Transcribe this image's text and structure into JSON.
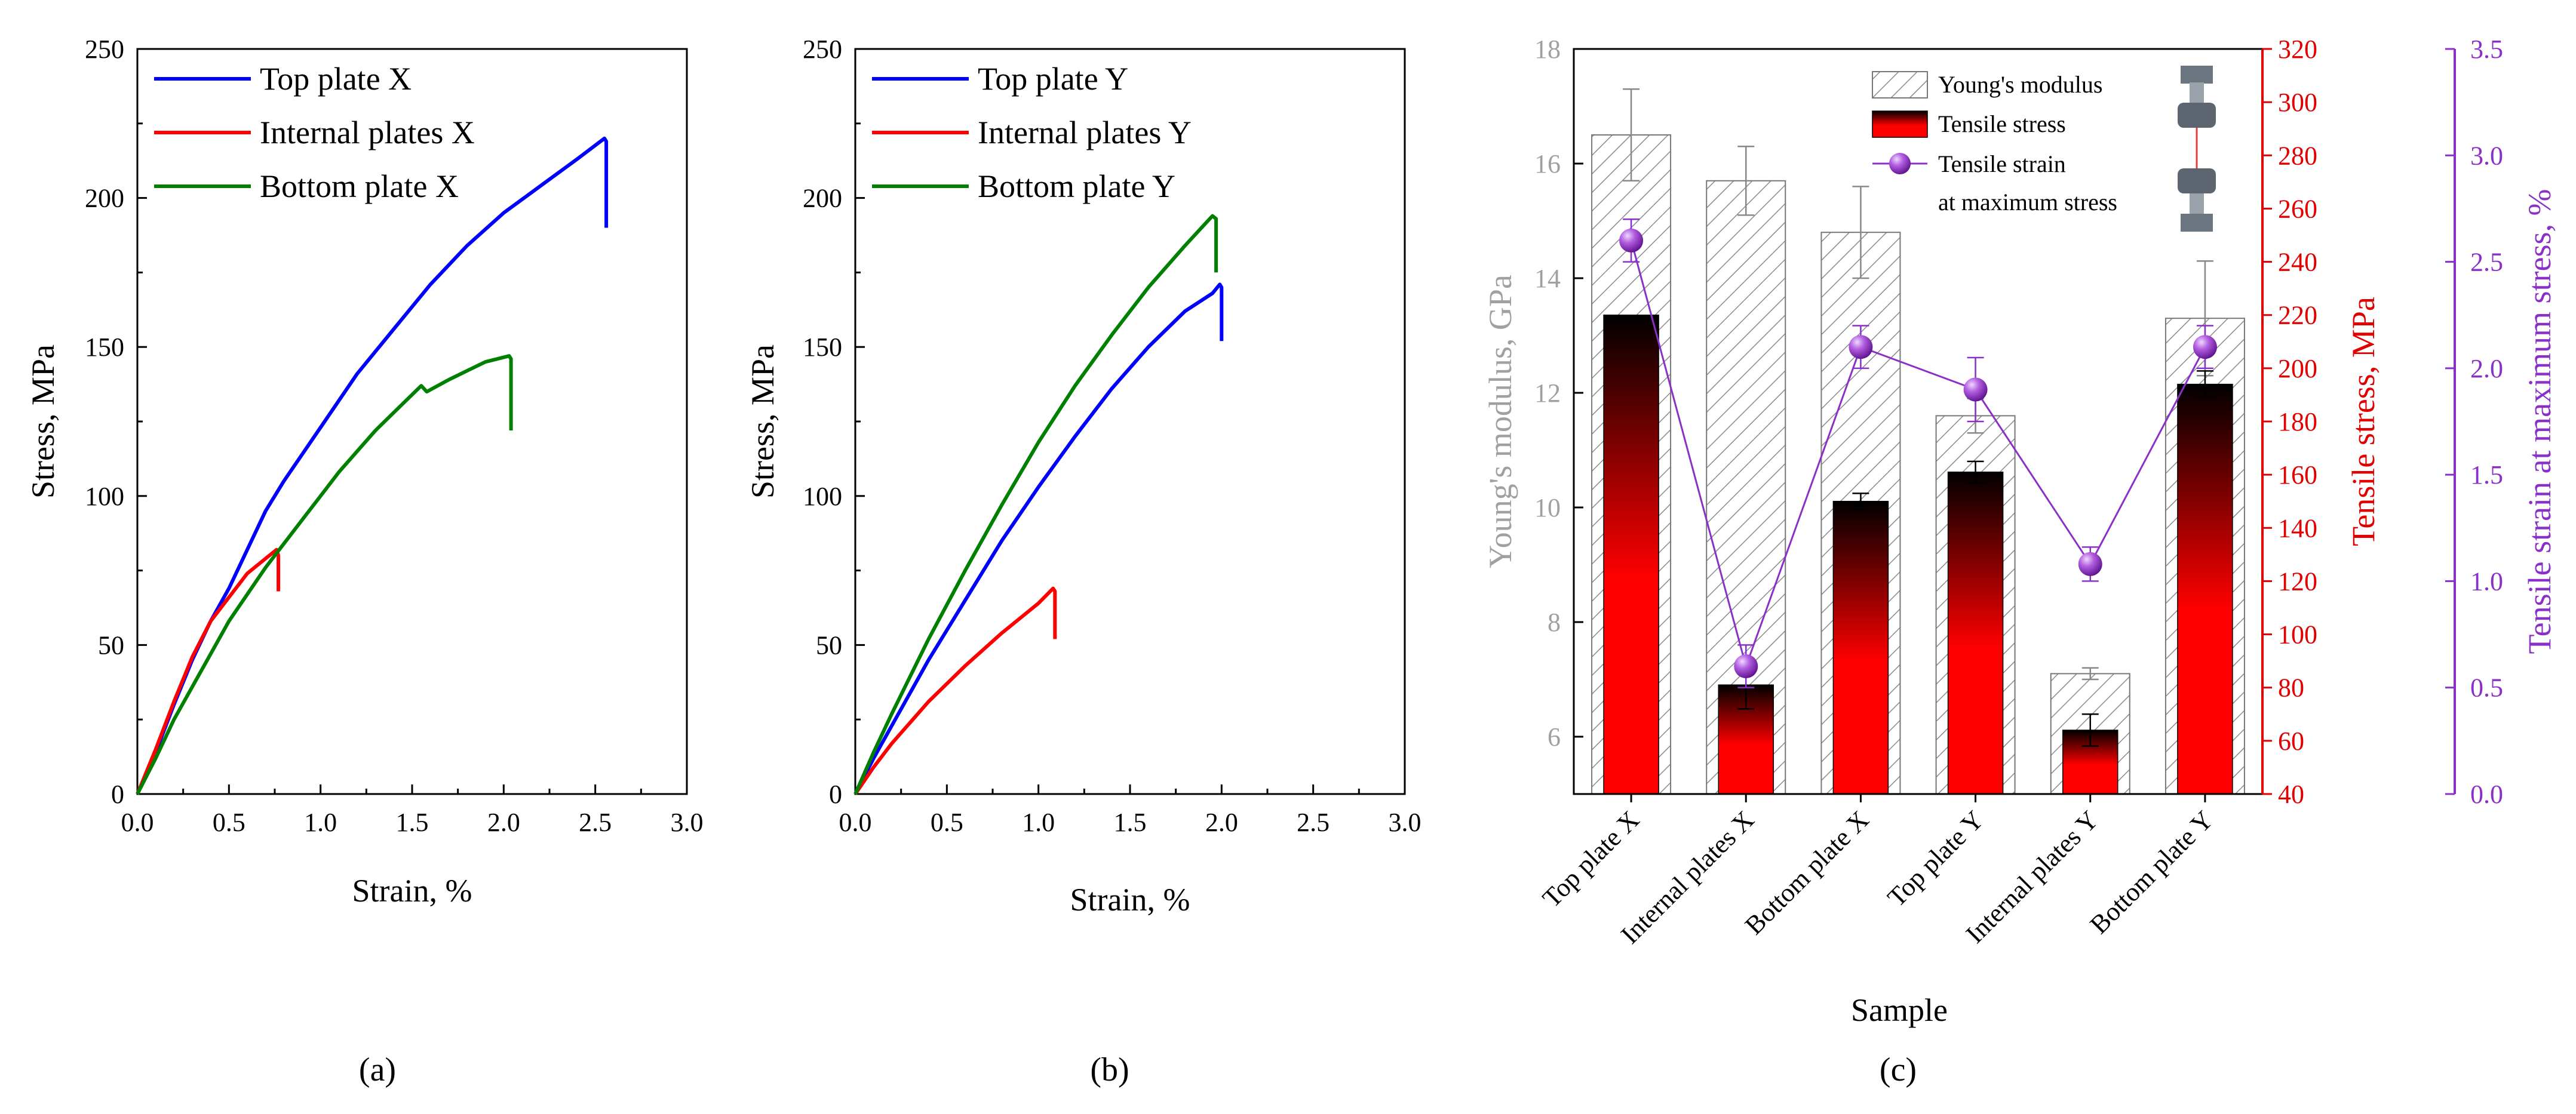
{
  "chart_data": [
    {
      "type": "line",
      "panel_label": "(a)",
      "xlabel": "Strain, %",
      "ylabel": "Stress, MPa",
      "xlim": [
        0,
        3.0
      ],
      "ylim": [
        0,
        250
      ],
      "x_ticks": [
        "0.0",
        "0.5",
        "1.0",
        "1.5",
        "2.0",
        "2.5",
        "3.0"
      ],
      "y_ticks": [
        "0",
        "50",
        "100",
        "150",
        "200",
        "250"
      ],
      "legend": "top-left",
      "series": [
        {
          "name": "Top plate X",
          "color": "#0000ff",
          "x": [
            0,
            0.1,
            0.2,
            0.3,
            0.4,
            0.5,
            0.6,
            0.7,
            0.8,
            0.9,
            1.0,
            1.2,
            1.4,
            1.6,
            1.8,
            2.0,
            2.2,
            2.4,
            2.55,
            2.56,
            2.56
          ],
          "y": [
            0,
            14,
            30,
            45,
            58,
            69,
            82,
            95,
            105,
            114,
            123,
            141,
            156,
            171,
            184,
            195,
            204,
            213,
            220,
            219,
            190
          ]
        },
        {
          "name": "Internal plates X",
          "color": "#ff0000",
          "x": [
            0,
            0.1,
            0.2,
            0.3,
            0.4,
            0.5,
            0.6,
            0.7,
            0.76,
            0.77,
            0.77
          ],
          "y": [
            0,
            15,
            31,
            46,
            58,
            66,
            74,
            79,
            82,
            80,
            68
          ]
        },
        {
          "name": "Bottom plate X",
          "color": "#008000",
          "x": [
            0,
            0.1,
            0.2,
            0.3,
            0.4,
            0.5,
            0.6,
            0.7,
            0.8,
            0.9,
            1.0,
            1.1,
            1.2,
            1.3,
            1.4,
            1.55,
            1.58,
            1.7,
            1.8,
            1.9,
            2.03,
            2.04,
            2.04
          ],
          "y": [
            0,
            12,
            25,
            36,
            47,
            58,
            67,
            76,
            84,
            92,
            100,
            108,
            115,
            122,
            128,
            137,
            135,
            139,
            142,
            145,
            147,
            146,
            122
          ]
        }
      ]
    },
    {
      "type": "line",
      "panel_label": "(b)",
      "xlabel": "Strain, %",
      "ylabel": "Stress, MPa",
      "xlim": [
        0,
        3.0
      ],
      "ylim": [
        0,
        250
      ],
      "x_ticks": [
        "0.0",
        "0.5",
        "1.0",
        "1.5",
        "2.0",
        "2.5",
        "3.0"
      ],
      "y_ticks": [
        "0",
        "50",
        "100",
        "150",
        "200",
        "250"
      ],
      "legend": "top-left",
      "series": [
        {
          "name": "Top plate Y",
          "color": "#0000ff",
          "x": [
            0,
            0.1,
            0.2,
            0.4,
            0.6,
            0.8,
            1.0,
            1.2,
            1.4,
            1.6,
            1.8,
            1.95,
            1.99,
            2.0,
            2.0
          ],
          "y": [
            0,
            12,
            23,
            45,
            65,
            85,
            103,
            120,
            136,
            150,
            162,
            168,
            171,
            170,
            152
          ]
        },
        {
          "name": "Internal plates Y",
          "color": "#ff0000",
          "x": [
            0,
            0.1,
            0.2,
            0.4,
            0.6,
            0.8,
            1.0,
            1.08,
            1.09,
            1.09
          ],
          "y": [
            0,
            9,
            17,
            31,
            43,
            54,
            64,
            69,
            68,
            52
          ]
        },
        {
          "name": "Bottom plate Y",
          "color": "#008000",
          "x": [
            0,
            0.1,
            0.2,
            0.4,
            0.6,
            0.8,
            1.0,
            1.2,
            1.4,
            1.6,
            1.8,
            1.95,
            1.97,
            1.97
          ],
          "y": [
            0,
            14,
            27,
            52,
            75,
            97,
            118,
            137,
            154,
            170,
            184,
            194,
            193,
            175
          ]
        }
      ]
    },
    {
      "type": "bar",
      "panel_label": "(c)",
      "xlabel": "Sample",
      "categories": [
        "Top plate X",
        "Internal plates X",
        "Bottom plate X",
        "Top plate Y",
        "Internal plates Y",
        "Bottom plate Y"
      ],
      "left_axis": {
        "label": "Young's modulus, GPa",
        "range": [
          5,
          18
        ],
        "ticks": [
          "6",
          "8",
          "10",
          "12",
          "14",
          "16",
          "18"
        ],
        "color": "#a0a0a0"
      },
      "right_axis_1": {
        "label": "Tensile stress, MPa",
        "range": [
          40,
          320
        ],
        "ticks": [
          "40",
          "60",
          "80",
          "100",
          "120",
          "140",
          "160",
          "180",
          "200",
          "220",
          "240",
          "260",
          "280",
          "300",
          "320"
        ],
        "color": "#e00000"
      },
      "right_axis_2": {
        "label": "Tensile strain at maximum stress, %",
        "range": [
          0.0,
          3.5
        ],
        "ticks": [
          "0.0",
          "0.5",
          "1.0",
          "1.5",
          "2.0",
          "2.5",
          "3.0",
          "3.5"
        ],
        "color": "#8b2fc9"
      },
      "series": [
        {
          "name": "Young's modulus",
          "axis": "left",
          "values": [
            16.5,
            15.7,
            14.8,
            11.6,
            7.1,
            13.3
          ],
          "errors": [
            0.8,
            0.6,
            0.8,
            0.3,
            0.1,
            1.0
          ]
        },
        {
          "name": "Tensile stress",
          "axis": "right_1",
          "values": [
            220,
            81,
            150,
            161,
            64,
            194
          ],
          "errors": [
            0,
            9,
            3,
            4,
            6,
            5
          ]
        },
        {
          "name": "Tensile strain at maximum stress",
          "axis": "right_2",
          "values": [
            2.6,
            0.6,
            2.1,
            1.9,
            1.08,
            2.1
          ],
          "errors": [
            0.1,
            0.1,
            0.1,
            0.15,
            0.08,
            0.1
          ]
        }
      ],
      "legend_entries": [
        "Young's modulus",
        "Tensile stress",
        "Tensile strain",
        "at maximum stress"
      ]
    }
  ]
}
